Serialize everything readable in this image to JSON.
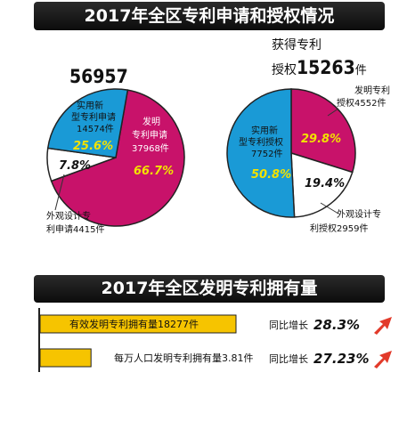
{
  "title_top": "2017年全区专利申请和授权情况",
  "title_mid": "2017年全区发明专利拥有量",
  "colors": {
    "invention": "#c8126a",
    "utility": "#1a9ad6",
    "design": "#ffffff",
    "bar": "#f6c400",
    "bar_outline": "#222222",
    "arrow": "#e23a2a"
  },
  "chart_data": [
    {
      "type": "pie",
      "caption_line1": "获得专利",
      "caption_line2_prefix": "授权",
      "caption_total": "15263",
      "caption_unit": "件",
      "slices": [
        {
          "name_line1": "发明专利",
          "name_line2": "授权4552件",
          "value": 4552,
          "percent": 29.8,
          "percent_label": "29.8%",
          "color": "#c8126a"
        },
        {
          "name_line1": "外观设计专",
          "name_line2": "利授权2959件",
          "value": 2959,
          "percent": 19.4,
          "percent_label": "19.4%",
          "color": "#ffffff"
        },
        {
          "name_line1": "实用新",
          "name_line2": "型专利授权",
          "name_line3": "7752件",
          "value": 7752,
          "percent": 50.8,
          "percent_label": "50.8%",
          "color": "#1a9ad6"
        }
      ]
    },
    {
      "type": "pie",
      "caption_total": "56957",
      "slices": [
        {
          "name_line1": "发明",
          "name_line2": "专利申请",
          "name_line3": "37968件",
          "value": 37968,
          "percent": 66.7,
          "percent_label": "66.7%",
          "color": "#c8126a"
        },
        {
          "name_line1": "外观设计专",
          "name_line2": "利申请4415件",
          "value": 4415,
          "percent": 7.8,
          "percent_label": "7.8%",
          "color": "#ffffff"
        },
        {
          "name_line1": "实用新",
          "name_line2": "型专利申请",
          "name_line3": "14574件",
          "value": 14574,
          "percent": 25.6,
          "percent_label": "25.6%",
          "color": "#1a9ad6"
        }
      ]
    },
    {
      "type": "bar",
      "categories": [
        "有效发明专利拥有量18277件",
        "每万人口发明专利拥有量3.81件"
      ],
      "growth_prefix": "同比增长",
      "growth": [
        "28.3%",
        "27.23%"
      ],
      "relative_length": [
        1.0,
        0.26
      ]
    }
  ]
}
